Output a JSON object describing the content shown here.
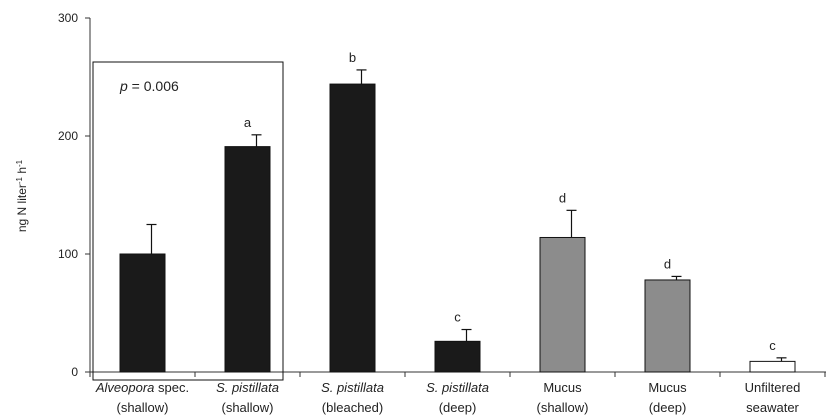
{
  "chart_data": {
    "type": "bar",
    "ylabel_parts": {
      "base": "ng N liter",
      "sup1": "-1",
      "mid": " h",
      "sup2": "-1"
    },
    "ylim": [
      0,
      300
    ],
    "yticks": [
      "0",
      "100",
      "200",
      "300"
    ],
    "grid": false,
    "categories": [
      {
        "name": "Alveopora spec.",
        "name_italic": "Alveopora",
        "name_rest": " spec.",
        "sub": "(shallow)"
      },
      {
        "name": "S. pistillata",
        "name_italic": "S. pistillata",
        "name_rest": "",
        "sub": "(shallow)"
      },
      {
        "name": "S. pistillata",
        "name_italic": "S. pistillata",
        "name_rest": "",
        "sub": "(bleached)"
      },
      {
        "name": "S. pistillata",
        "name_italic": "S. pistillata",
        "name_rest": "",
        "sub": "(deep)"
      },
      {
        "name": "Mucus",
        "name_italic": "",
        "name_rest": "Mucus",
        "sub": "(shallow)"
      },
      {
        "name": "Mucus",
        "name_italic": "",
        "name_rest": "Mucus",
        "sub": "(deep)"
      },
      {
        "name": "Unfiltered",
        "name_italic": "",
        "name_rest": "Unfiltered",
        "sub": "seawater"
      }
    ],
    "values": [
      100,
      191,
      244,
      26,
      114,
      78,
      9
    ],
    "errors": [
      25,
      10,
      12,
      10,
      23,
      3,
      3
    ],
    "letters": [
      "",
      "a",
      "b",
      "c",
      "d",
      "d",
      "c"
    ],
    "bar_colors": [
      "#1a1a1a",
      "#1a1a1a",
      "#1a1a1a",
      "#1a1a1a",
      "#8c8c8c",
      "#8c8c8c",
      "#ffffff"
    ],
    "annotation": {
      "italic": "p",
      "rest": " = 0.006"
    }
  }
}
